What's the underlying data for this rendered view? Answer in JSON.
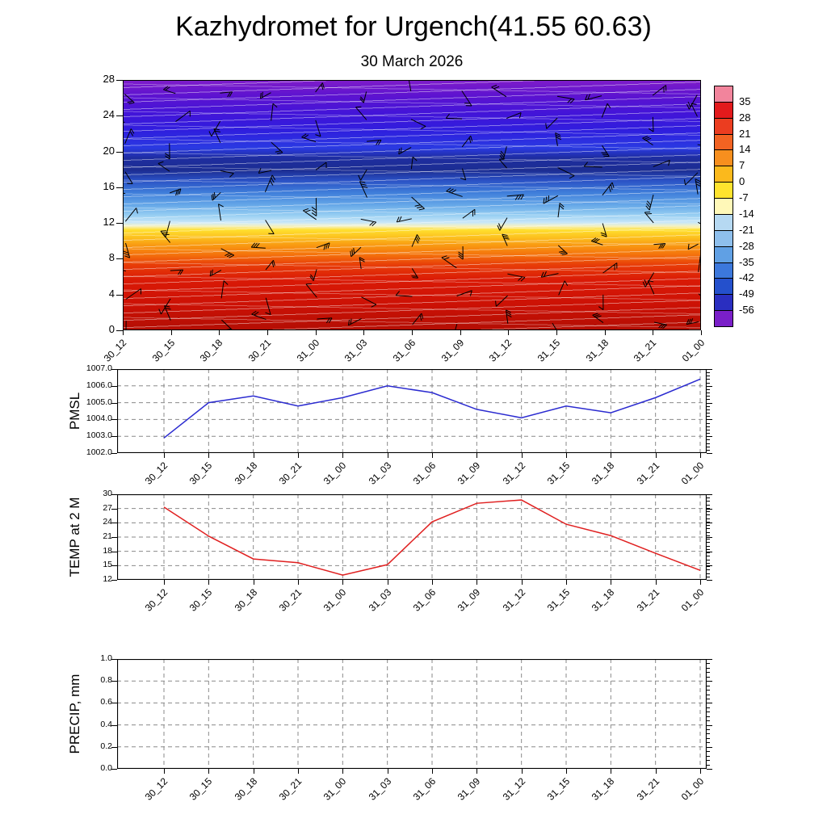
{
  "header": {
    "title": "Kazhydromet for Urgench(41.55 60.63)",
    "subtitle": "30 March 2026"
  },
  "time_labels": [
    "30_12",
    "30_15",
    "30_18",
    "30_21",
    "31_00",
    "31_03",
    "31_06",
    "31_09",
    "31_12",
    "31_15",
    "31_18",
    "31_21",
    "01_00"
  ],
  "chart_data": [
    {
      "id": "upper-air",
      "type": "heatmap",
      "description": "Vertical temperature cross-section (height in km vs time) with wind barbs",
      "x": [
        "30_12",
        "30_15",
        "30_18",
        "30_21",
        "31_00",
        "31_03",
        "31_06",
        "31_09",
        "31_12",
        "31_15",
        "31_18",
        "31_21",
        "01_00"
      ],
      "y_ticks": [
        0,
        4,
        8,
        12,
        16,
        20,
        24,
        28
      ],
      "ylim": [
        0,
        28
      ],
      "colorbar": {
        "labels": [
          "35",
          "28",
          "21",
          "14",
          "7",
          "0",
          "-7",
          "-14",
          "-21",
          "-28",
          "-35",
          "-42",
          "-49",
          "-56"
        ],
        "segment_colors": [
          "#f2849c",
          "#e31a1c",
          "#eb3d20",
          "#f26322",
          "#f78f1e",
          "#fbb91c",
          "#ffe32e",
          "#fff8b8",
          "#b6d9f2",
          "#8ebfec",
          "#60a0e4",
          "#3c78dc",
          "#2450cc",
          "#2a2ec0",
          "#7a1fc8"
        ]
      },
      "gradient_stops": [
        {
          "pos": 0,
          "color": "#7e1cc9"
        },
        {
          "pos": 6,
          "color": "#5d13d0"
        },
        {
          "pos": 13,
          "color": "#4314d8"
        },
        {
          "pos": 20,
          "color": "#2f1ede"
        },
        {
          "pos": 27,
          "color": "#2a3ae2"
        },
        {
          "pos": 31,
          "color": "#1e2da0"
        },
        {
          "pos": 36,
          "color": "#1c2d92"
        },
        {
          "pos": 40,
          "color": "#2a50c4"
        },
        {
          "pos": 45,
          "color": "#3f7eda"
        },
        {
          "pos": 50,
          "color": "#66a8e8"
        },
        {
          "pos": 54,
          "color": "#96cef2"
        },
        {
          "pos": 57,
          "color": "#c9e7f8"
        },
        {
          "pos": 58.5,
          "color": "#f6f2c0"
        },
        {
          "pos": 60,
          "color": "#ffdf2e"
        },
        {
          "pos": 63,
          "color": "#fcc01e"
        },
        {
          "pos": 66,
          "color": "#f99b12"
        },
        {
          "pos": 70,
          "color": "#f4710c"
        },
        {
          "pos": 74,
          "color": "#e83d08"
        },
        {
          "pos": 80,
          "color": "#da1a06"
        },
        {
          "pos": 90,
          "color": "#cc1105"
        },
        {
          "pos": 100,
          "color": "#b40e04"
        }
      ],
      "wind_barbs": {
        "columns": 13,
        "rows": 10,
        "color": "#000000"
      }
    },
    {
      "id": "pmsl",
      "type": "line",
      "title": "PMSL",
      "x": [
        "30_12",
        "30_15",
        "30_18",
        "30_21",
        "31_00",
        "31_03",
        "31_06",
        "31_09",
        "31_12",
        "31_15",
        "31_18",
        "31_21",
        "01_00"
      ],
      "values": [
        1002.9,
        1005.0,
        1005.4,
        1004.8,
        1005.3,
        1006.0,
        1005.6,
        1004.6,
        1004.1,
        1004.8,
        1004.4,
        1005.3,
        1006.4
      ],
      "yticks": [
        "1007.0",
        "1006.0",
        "1005.0",
        "1004.0",
        "1003.0",
        "1002.0"
      ],
      "ylim": [
        1002,
        1007
      ],
      "color": "#2b2bd0",
      "grid": true
    },
    {
      "id": "temp2m",
      "type": "line",
      "title": "TEMP at 2 M",
      "x": [
        "30_12",
        "30_15",
        "30_18",
        "30_21",
        "31_00",
        "31_03",
        "31_06",
        "31_09",
        "31_12",
        "31_15",
        "31_18",
        "31_21",
        "01_00"
      ],
      "values": [
        27.3,
        21.2,
        16.4,
        15.6,
        13.0,
        15.2,
        24.2,
        28.1,
        28.8,
        23.7,
        21.3,
        17.6,
        14.0
      ],
      "yticks": [
        "30",
        "27",
        "24",
        "21",
        "18",
        "15",
        "12"
      ],
      "ylim": [
        12,
        30
      ],
      "color": "#e02020",
      "grid": true
    },
    {
      "id": "precip",
      "type": "line",
      "title": "PRECIP, mm",
      "x": [
        "30_12",
        "30_15",
        "30_18",
        "30_21",
        "31_00",
        "31_03",
        "31_06",
        "31_09",
        "31_12",
        "31_15",
        "31_18",
        "31_21",
        "01_00"
      ],
      "values": [
        0,
        0,
        0,
        0,
        0,
        0,
        0,
        0,
        0,
        0,
        0,
        0,
        0
      ],
      "yticks": [
        "1.0",
        "0.8",
        "0.6",
        "0.4",
        "0.2",
        "0.0"
      ],
      "ylim": [
        0,
        1
      ],
      "color": "#005a00",
      "grid": true
    }
  ],
  "style": {
    "grid_color": "#8a8a8a",
    "axis_color": "#000000",
    "background": "#ffffff"
  }
}
